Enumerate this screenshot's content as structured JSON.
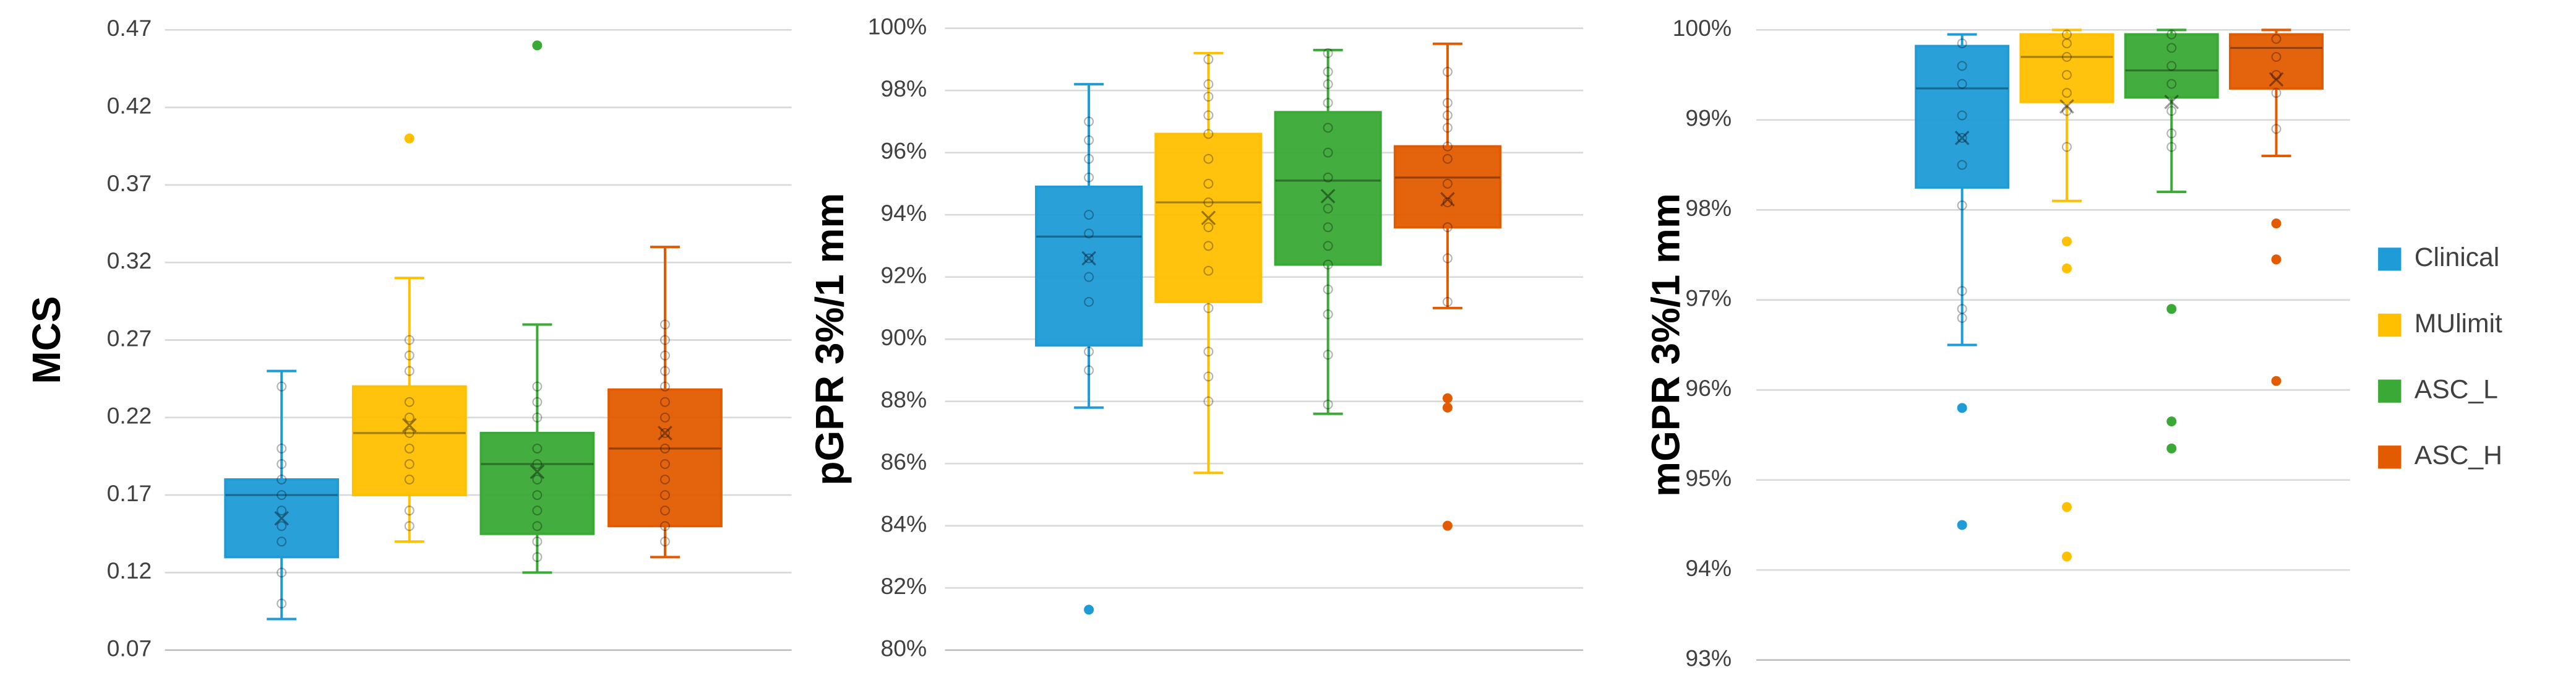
{
  "chart_data": [
    {
      "type": "box",
      "ylabel": "MCS",
      "ylim": [
        0.07,
        0.47
      ],
      "yticks": [
        0.07,
        0.12,
        0.17,
        0.22,
        0.27,
        0.32,
        0.37,
        0.42,
        0.47
      ],
      "grid": true,
      "series": [
        {
          "name": "Clinical",
          "color": "#1f9bd7",
          "whisker_low": 0.09,
          "q1": 0.13,
          "median": 0.17,
          "q3": 0.18,
          "whisker_high": 0.25,
          "mean": 0.155,
          "points": [
            0.1,
            0.12,
            0.14,
            0.15,
            0.16,
            0.17,
            0.18,
            0.19,
            0.2,
            0.24
          ],
          "outliers": []
        },
        {
          "name": "MUlimit",
          "color": "#ffc000",
          "whisker_low": 0.14,
          "q1": 0.17,
          "median": 0.21,
          "q3": 0.24,
          "whisker_high": 0.31,
          "mean": 0.215,
          "points": [
            0.15,
            0.16,
            0.18,
            0.19,
            0.2,
            0.21,
            0.22,
            0.23,
            0.25,
            0.26,
            0.27
          ],
          "outliers": [
            0.4
          ]
        },
        {
          "name": "ASC_L",
          "color": "#3aa935",
          "whisker_low": 0.12,
          "q1": 0.145,
          "median": 0.19,
          "q3": 0.21,
          "whisker_high": 0.28,
          "mean": 0.185,
          "points": [
            0.13,
            0.14,
            0.15,
            0.16,
            0.17,
            0.18,
            0.19,
            0.2,
            0.22,
            0.23,
            0.24
          ],
          "outliers": [
            0.46
          ]
        },
        {
          "name": "ASC_H",
          "color": "#e35b00",
          "whisker_low": 0.13,
          "q1": 0.15,
          "median": 0.2,
          "q3": 0.238,
          "whisker_high": 0.33,
          "mean": 0.21,
          "points": [
            0.14,
            0.15,
            0.16,
            0.17,
            0.18,
            0.19,
            0.2,
            0.21,
            0.22,
            0.23,
            0.24,
            0.25,
            0.26,
            0.27,
            0.28
          ],
          "outliers": []
        }
      ]
    },
    {
      "type": "box",
      "ylabel": "pGPR 3%/1 mm",
      "ylim": [
        80,
        100
      ],
      "yticks": [
        {
          "value": 80,
          "label": "80%"
        },
        {
          "value": 82,
          "label": "82%"
        },
        {
          "value": 84,
          "label": "84%"
        },
        {
          "value": 86,
          "label": "86%"
        },
        {
          "value": 88,
          "label": "88%"
        },
        {
          "value": 90,
          "label": "90%"
        },
        {
          "value": 92,
          "label": "92%"
        },
        {
          "value": 94,
          "label": "94%"
        },
        {
          "value": 96,
          "label": "96%"
        },
        {
          "value": 98,
          "label": "98%"
        },
        {
          "value": 100,
          "label": "100%"
        }
      ],
      "grid": true,
      "series": [
        {
          "name": "Clinical",
          "color": "#1f9bd7",
          "whisker_low": 87.8,
          "q1": 89.8,
          "median": 93.3,
          "q3": 94.9,
          "whisker_high": 98.2,
          "mean": 92.6,
          "points": [
            89,
            89.6,
            91.2,
            92,
            92.6,
            93.4,
            94,
            95.2,
            95.8,
            96.4,
            97
          ],
          "outliers": [
            81.3
          ]
        },
        {
          "name": "MUlimit",
          "color": "#ffc000",
          "whisker_low": 85.7,
          "q1": 91.2,
          "median": 94.4,
          "q3": 96.6,
          "whisker_high": 99.2,
          "mean": 93.9,
          "points": [
            88,
            88.8,
            89.6,
            91,
            92.2,
            93,
            93.6,
            94.4,
            95,
            95.8,
            96.6,
            97.2,
            97.8,
            98.2,
            99
          ],
          "outliers": []
        },
        {
          "name": "ASC_L",
          "color": "#3aa935",
          "whisker_low": 87.6,
          "q1": 92.4,
          "median": 95.1,
          "q3": 97.3,
          "whisker_high": 99.3,
          "mean": 94.6,
          "points": [
            87.9,
            89.5,
            90.8,
            91.6,
            92.4,
            93,
            93.6,
            94.2,
            95.2,
            96,
            96.8,
            97.6,
            98.2,
            98.6,
            99.2
          ],
          "outliers": []
        },
        {
          "name": "ASC_H",
          "color": "#e35b00",
          "whisker_low": 91.0,
          "q1": 93.6,
          "median": 95.2,
          "q3": 96.2,
          "whisker_high": 99.5,
          "mean": 94.5,
          "points": [
            91.2,
            92.6,
            93.6,
            94.4,
            95,
            95.8,
            96.2,
            96.8,
            97.2,
            97.6,
            98.6
          ],
          "outliers": [
            88.1,
            87.8,
            84.0
          ]
        }
      ]
    },
    {
      "type": "box",
      "ylabel": "mGPR 3%/1 mm",
      "ylim": [
        93,
        100
      ],
      "yticks": [
        {
          "value": 93,
          "label": "93%"
        },
        {
          "value": 94,
          "label": "94%"
        },
        {
          "value": 95,
          "label": "95%"
        },
        {
          "value": 96,
          "label": "96%"
        },
        {
          "value": 97,
          "label": "97%"
        },
        {
          "value": 98,
          "label": "98%"
        },
        {
          "value": 99,
          "label": "99%"
        },
        {
          "value": 100,
          "label": "100%"
        }
      ],
      "grid": true,
      "legend": "right",
      "series": [
        {
          "name": "Clinical",
          "color": "#1f9bd7",
          "whisker_low": 96.5,
          "q1": 98.25,
          "median": 99.35,
          "q3": 99.82,
          "whisker_high": 99.95,
          "mean": 98.8,
          "points": [
            96.8,
            96.9,
            97.1,
            98.05,
            98.5,
            98.8,
            99.05,
            99.4,
            99.6,
            99.85
          ],
          "outliers": [
            95.8,
            94.5
          ]
        },
        {
          "name": "MUlimit",
          "color": "#ffc000",
          "whisker_low": 98.1,
          "q1": 99.2,
          "median": 99.7,
          "q3": 99.95,
          "whisker_high": 100,
          "mean": 99.15,
          "points": [
            98.7,
            99.1,
            99.3,
            99.5,
            99.7,
            99.85,
            99.95
          ],
          "outliers": [
            97.65,
            97.35,
            94.7,
            94.15
          ]
        },
        {
          "name": "ASC_L",
          "color": "#3aa935",
          "whisker_low": 98.2,
          "q1": 99.25,
          "median": 99.55,
          "q3": 99.95,
          "whisker_high": 100,
          "mean": 99.2,
          "points": [
            98.7,
            98.85,
            99.1,
            99.4,
            99.6,
            99.8,
            99.95
          ],
          "outliers": [
            96.9,
            95.65,
            95.35
          ]
        },
        {
          "name": "ASC_H",
          "color": "#e35b00",
          "whisker_low": 98.6,
          "q1": 99.35,
          "median": 99.8,
          "q3": 99.95,
          "whisker_high": 100,
          "mean": 99.45,
          "points": [
            98.9,
            99.3,
            99.5,
            99.7,
            99.9
          ],
          "outliers": [
            97.85,
            97.45,
            96.1
          ]
        }
      ]
    }
  ]
}
